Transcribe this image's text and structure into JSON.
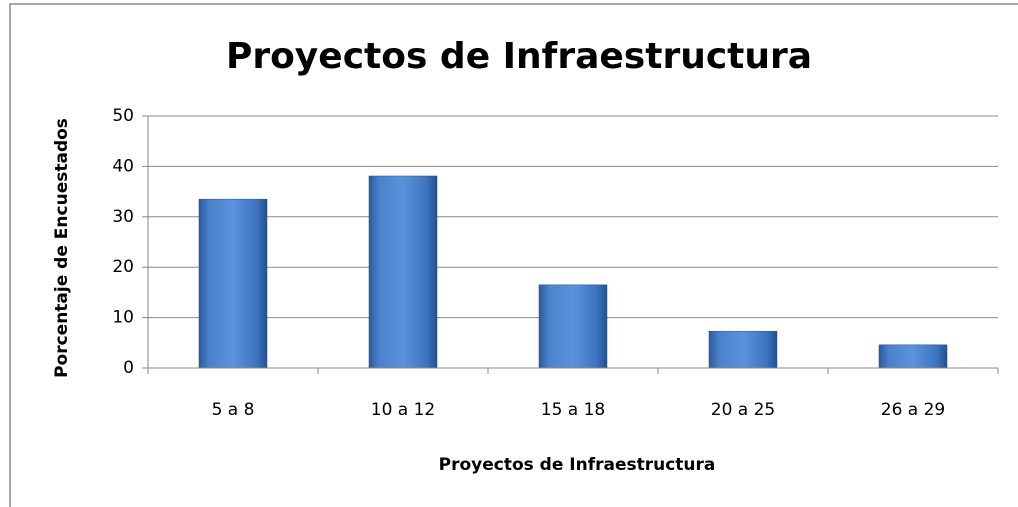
{
  "chart_data": {
    "type": "bar",
    "title": "Proyectos de Infraestructura",
    "x_label": "Proyectos de Infraestructura",
    "y_label": "Porcentaje de Encuestados",
    "categories": [
      "5 a 8",
      "10 a 12",
      "15 a 18",
      "20 a 25",
      "26 a 29"
    ],
    "values": [
      33.5,
      38.1,
      16.5,
      7.3,
      4.6
    ],
    "color": "#3f75c0",
    "ylim": [
      0,
      50
    ],
    "yticks": [
      0,
      10,
      20,
      30,
      40,
      50
    ],
    "grid": true
  }
}
